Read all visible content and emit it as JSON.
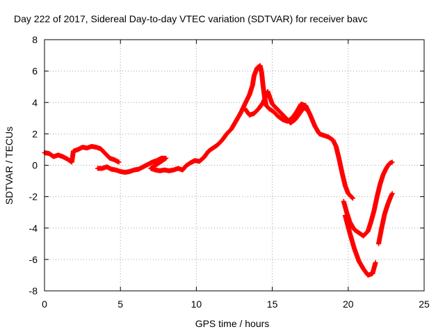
{
  "chart_data": {
    "type": "scatter",
    "title": "Day 222 of 2017, Sidereal Day-to-day VTEC variation (SDTVAR) for receiver bavc",
    "xlabel": "GPS time / hours",
    "ylabel": "SDTVAR / TECUs",
    "xlim": [
      0,
      25
    ],
    "ylim": [
      -8,
      8
    ],
    "xticks": [
      0,
      5,
      10,
      15,
      20,
      25
    ],
    "yticks": [
      -8,
      -6,
      -4,
      -2,
      0,
      2,
      4,
      6,
      8
    ],
    "grid": true,
    "marker": "plus",
    "color": "#ff0000",
    "series": [
      {
        "points": [
          [
            0.0,
            0.8
          ],
          [
            0.3,
            0.75
          ],
          [
            0.6,
            0.55
          ],
          [
            0.9,
            0.65
          ],
          [
            1.2,
            0.55
          ],
          [
            1.5,
            0.4
          ],
          [
            1.8,
            0.2
          ],
          [
            1.9,
            0.9
          ],
          [
            2.2,
            1.0
          ],
          [
            2.5,
            1.15
          ],
          [
            2.8,
            1.1
          ],
          [
            3.1,
            1.2
          ],
          [
            3.4,
            1.15
          ],
          [
            3.7,
            1.05
          ],
          [
            3.9,
            0.85
          ],
          [
            4.1,
            0.65
          ],
          [
            4.3,
            0.45
          ],
          [
            4.6,
            0.35
          ],
          [
            4.9,
            0.2
          ],
          [
            3.5,
            -0.2
          ],
          [
            3.8,
            -0.2
          ],
          [
            4.1,
            -0.1
          ],
          [
            4.4,
            -0.25
          ],
          [
            4.7,
            -0.3
          ],
          [
            5.0,
            -0.4
          ],
          [
            5.3,
            -0.45
          ],
          [
            5.6,
            -0.4
          ],
          [
            5.9,
            -0.3
          ],
          [
            6.2,
            -0.25
          ],
          [
            6.5,
            -0.1
          ],
          [
            6.8,
            0.05
          ],
          [
            7.1,
            0.2
          ],
          [
            7.4,
            0.3
          ],
          [
            7.7,
            0.45
          ],
          [
            8.0,
            0.45
          ],
          [
            7.0,
            -0.2
          ],
          [
            7.3,
            -0.3
          ],
          [
            7.6,
            -0.35
          ],
          [
            7.9,
            -0.3
          ],
          [
            8.2,
            -0.35
          ],
          [
            8.5,
            -0.3
          ],
          [
            8.8,
            -0.2
          ],
          [
            9.1,
            -0.3
          ],
          [
            9.3,
            -0.05
          ],
          [
            9.6,
            0.15
          ],
          [
            9.9,
            0.3
          ],
          [
            10.2,
            0.25
          ],
          [
            10.5,
            0.5
          ],
          [
            10.8,
            0.9
          ],
          [
            11.1,
            1.1
          ],
          [
            11.4,
            1.3
          ],
          [
            11.7,
            1.6
          ],
          [
            12.0,
            2.0
          ],
          [
            12.3,
            2.3
          ],
          [
            12.6,
            2.8
          ],
          [
            12.9,
            3.3
          ],
          [
            13.2,
            3.9
          ],
          [
            13.5,
            4.5
          ],
          [
            13.7,
            5.1
          ],
          [
            13.8,
            5.7
          ],
          [
            14.0,
            6.2
          ],
          [
            14.2,
            6.35
          ],
          [
            14.3,
            5.9
          ],
          [
            14.4,
            5.0
          ],
          [
            14.5,
            4.3
          ],
          [
            14.6,
            3.8
          ],
          [
            14.8,
            3.6
          ],
          [
            15.1,
            3.4
          ],
          [
            15.4,
            3.1
          ],
          [
            15.7,
            2.9
          ],
          [
            16.0,
            2.8
          ],
          [
            16.3,
            3.0
          ],
          [
            16.6,
            3.4
          ],
          [
            16.9,
            3.9
          ],
          [
            17.2,
            3.8
          ],
          [
            17.5,
            3.2
          ],
          [
            17.8,
            2.5
          ],
          [
            18.1,
            2.0
          ],
          [
            18.4,
            1.9
          ],
          [
            18.7,
            1.8
          ],
          [
            19.0,
            1.6
          ],
          [
            19.2,
            1.2
          ],
          [
            19.4,
            0.4
          ],
          [
            19.6,
            -0.5
          ],
          [
            19.8,
            -1.3
          ],
          [
            20.0,
            -1.8
          ],
          [
            20.3,
            -2.1
          ],
          [
            13.2,
            3.6
          ],
          [
            13.5,
            3.2
          ],
          [
            13.8,
            3.3
          ],
          [
            14.1,
            3.6
          ],
          [
            14.4,
            4.0
          ],
          [
            14.7,
            4.7
          ],
          [
            15.0,
            3.9
          ],
          [
            15.3,
            3.6
          ],
          [
            15.6,
            3.3
          ],
          [
            15.9,
            3.0
          ],
          [
            16.2,
            2.7
          ],
          [
            16.5,
            2.9
          ],
          [
            16.8,
            3.3
          ],
          [
            17.1,
            3.7
          ],
          [
            17.3,
            3.5
          ],
          [
            19.7,
            -2.3
          ],
          [
            19.9,
            -3.0
          ],
          [
            20.1,
            -3.6
          ],
          [
            20.4,
            -4.1
          ],
          [
            20.7,
            -4.3
          ],
          [
            21.0,
            -4.5
          ],
          [
            21.3,
            -4.2
          ],
          [
            21.5,
            -3.6
          ],
          [
            21.7,
            -2.9
          ],
          [
            21.9,
            -2.0
          ],
          [
            22.1,
            -1.2
          ],
          [
            22.3,
            -0.6
          ],
          [
            22.5,
            -0.2
          ],
          [
            22.7,
            0.1
          ],
          [
            22.9,
            0.2
          ],
          [
            19.8,
            -3.2
          ],
          [
            20.1,
            -4.3
          ],
          [
            20.4,
            -5.3
          ],
          [
            20.7,
            -6.1
          ],
          [
            21.0,
            -6.6
          ],
          [
            21.3,
            -7.0
          ],
          [
            21.6,
            -6.9
          ],
          [
            21.8,
            -6.2
          ],
          [
            22.0,
            -5.0
          ],
          [
            22.2,
            -4.0
          ],
          [
            22.4,
            -3.1
          ],
          [
            22.6,
            -2.5
          ],
          [
            22.8,
            -2.0
          ],
          [
            22.9,
            -1.8
          ]
        ]
      }
    ]
  }
}
